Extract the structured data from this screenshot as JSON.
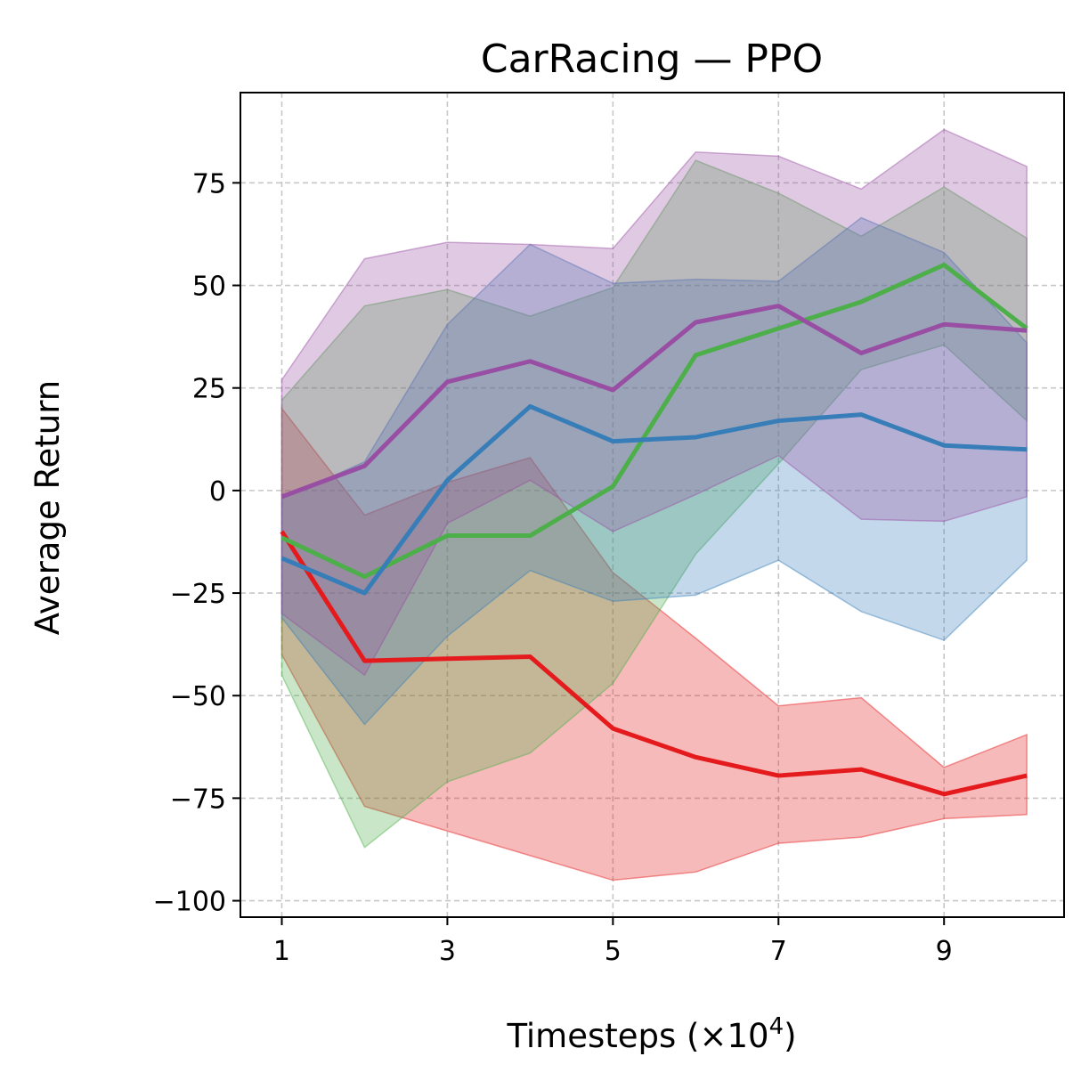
{
  "chart_data": {
    "type": "line",
    "title": "CarRacing — PPO",
    "xlabel": "Timesteps (×10",
    "xlabel_exponent": "4",
    "xlabel_suffix": ")",
    "ylabel": "Average Return",
    "xlim": [
      0.5,
      10.45
    ],
    "ylim": [
      -104,
      97
    ],
    "xticks": [
      1,
      3,
      5,
      7,
      9
    ],
    "yticks": [
      -100,
      -75,
      -50,
      -25,
      0,
      25,
      50,
      75
    ],
    "ytick_labels": [
      "−100",
      "−75",
      "−50",
      "−25",
      "0",
      "25",
      "50",
      "75"
    ],
    "grid": true,
    "x": [
      1,
      2,
      3,
      4,
      5,
      6,
      7,
      8,
      9,
      10
    ],
    "series": [
      {
        "name": "red",
        "color": "#e41a1c",
        "mean": [
          -10,
          -41.5,
          -41,
          -40.5,
          -58,
          -65,
          -69.5,
          -68,
          -74,
          -69.5
        ],
        "upper": [
          20,
          -6,
          2,
          8,
          -20,
          -36,
          -52.5,
          -50.5,
          -67.5,
          -59.5
        ],
        "lower": [
          -40,
          -77,
          -83,
          -89,
          -95,
          -93,
          -86,
          -84.5,
          -80,
          -79
        ]
      },
      {
        "name": "green",
        "color": "#4daf4a",
        "mean": [
          -11.5,
          -21,
          -11,
          -11,
          1,
          33,
          39.5,
          46,
          55,
          39.5
        ],
        "upper": [
          22,
          45,
          49,
          42.5,
          49.5,
          80.5,
          72.5,
          62,
          74,
          61.5
        ],
        "lower": [
          -45,
          -87,
          -71,
          -64,
          -47,
          -15.5,
          6.5,
          29.5,
          35.5,
          17
        ]
      },
      {
        "name": "blue",
        "color": "#377eb8",
        "mean": [
          -16.5,
          -25,
          2.5,
          20.5,
          12,
          13,
          17,
          18.5,
          11,
          10
        ],
        "upper": [
          -2,
          7,
          40.5,
          60,
          50.5,
          51.5,
          51,
          66.5,
          58,
          36
        ],
        "lower": [
          -31,
          -57,
          -35.5,
          -19.5,
          -27,
          -25.5,
          -17,
          -29.5,
          -36.5,
          -17
        ]
      },
      {
        "name": "purple",
        "color": "#984ea3",
        "mean": [
          -1.5,
          6,
          26.5,
          31.5,
          24.5,
          41,
          45,
          33.5,
          40.5,
          39
        ],
        "upper": [
          27,
          56.5,
          60.5,
          60,
          59,
          82.5,
          81.5,
          73.5,
          88,
          79
        ],
        "lower": [
          -30,
          -45,
          -8,
          2.5,
          -10,
          -1,
          8.5,
          -7,
          -7.5,
          -1.5
        ]
      }
    ],
    "band_opacity": 0.3
  }
}
